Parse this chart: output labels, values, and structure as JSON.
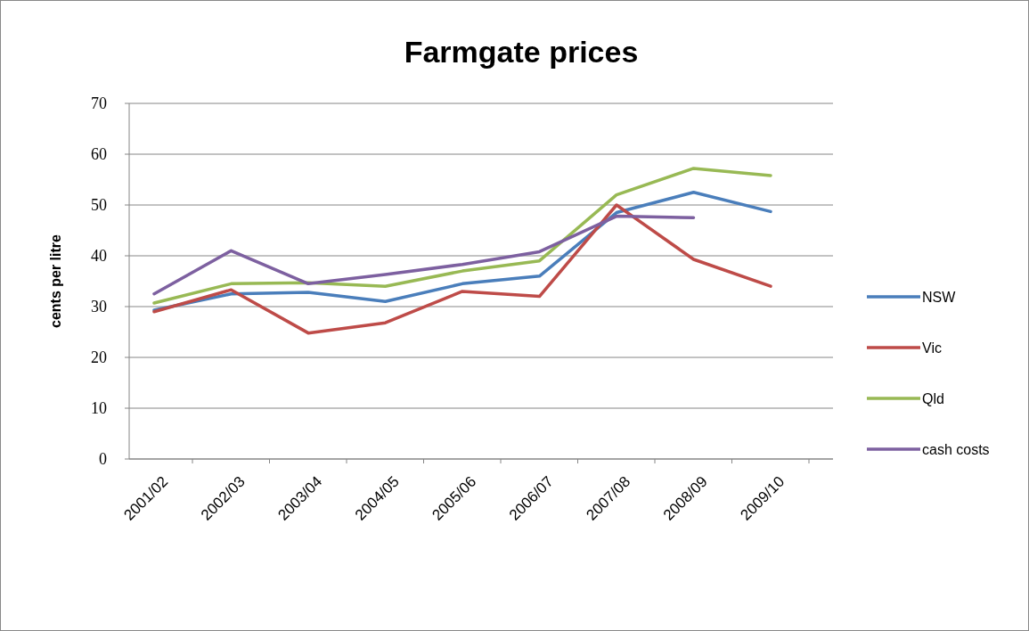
{
  "chart_data": {
    "type": "line",
    "title": "Farmgate prices",
    "ylabel": "cents per litre",
    "categories": [
      "2001/02",
      "2002/03",
      "2003/04",
      "2004/05",
      "2005/06",
      "2006/07",
      "2007/08",
      "2008/09",
      "2009/10"
    ],
    "series": [
      {
        "name": "NSW",
        "color": "#4a7ebb",
        "values": [
          29.3,
          32.5,
          32.8,
          31,
          34.5,
          36,
          48.5,
          52.5,
          48.7
        ]
      },
      {
        "name": "Vic",
        "color": "#be4b48",
        "values": [
          29,
          33.3,
          24.8,
          26.8,
          33,
          32,
          50,
          39.3,
          34
        ]
      },
      {
        "name": "Qld",
        "color": "#98b954",
        "values": [
          30.7,
          34.5,
          34.7,
          34,
          37,
          39,
          52,
          57.2,
          55.8
        ]
      },
      {
        "name": "cash costs",
        "color": "#7d60a0",
        "values": [
          32.5,
          41,
          34.5,
          36.3,
          38.3,
          40.8,
          47.8,
          47.5,
          null
        ]
      }
    ],
    "ylim": [
      0,
      70
    ],
    "yticks": [
      0,
      10,
      20,
      30,
      40,
      50,
      60,
      70
    ],
    "grid": "y",
    "legend": "right",
    "marker": "none",
    "line_style": "solid"
  }
}
